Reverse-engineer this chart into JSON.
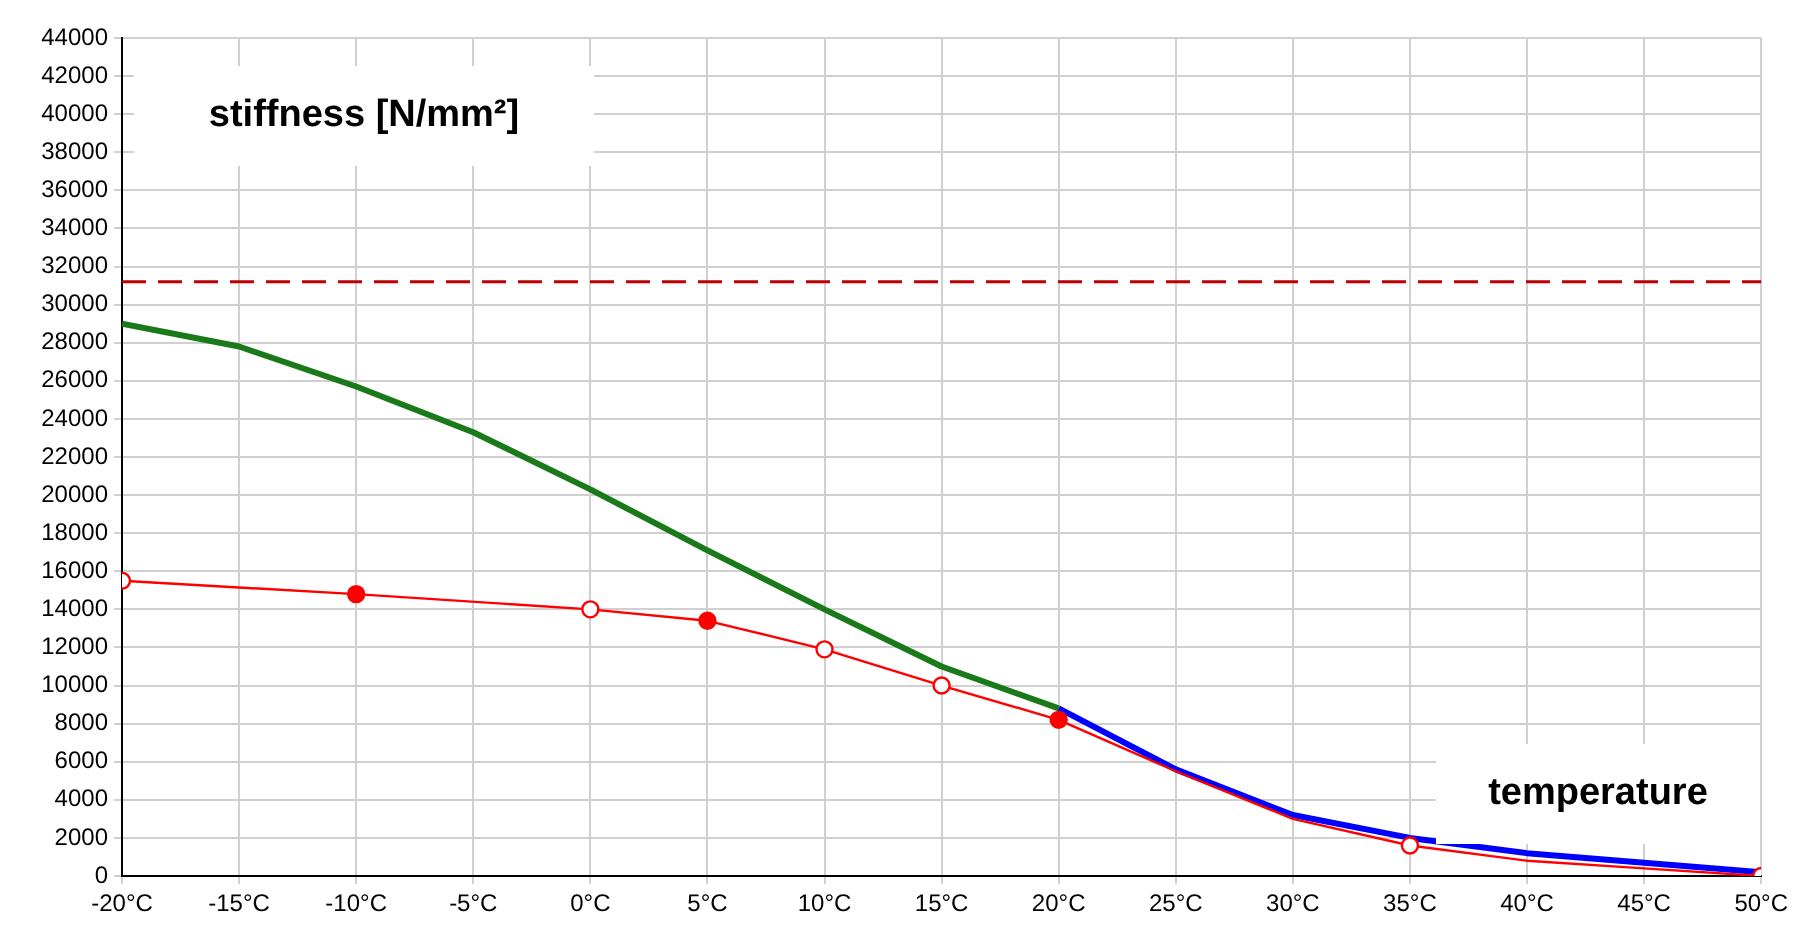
{
  "chart_data": {
    "type": "line",
    "ylabel": "stiffness [N/mm²]",
    "xlabel": "temperature",
    "xlim": [
      -20,
      50
    ],
    "xticks": [
      {
        "value": -20,
        "label": "-20°C"
      },
      {
        "value": -15,
        "label": "-15°C"
      },
      {
        "value": -10,
        "label": "-10°C"
      },
      {
        "value": -5,
        "label": "-5°C"
      },
      {
        "value": 0,
        "label": "0°C"
      },
      {
        "value": 5,
        "label": "5°C"
      },
      {
        "value": 10,
        "label": "10°C"
      },
      {
        "value": 15,
        "label": "15°C"
      },
      {
        "value": 20,
        "label": "20°C"
      },
      {
        "value": 25,
        "label": "25°C"
      },
      {
        "value": 30,
        "label": "30°C"
      },
      {
        "value": 35,
        "label": "35°C"
      },
      {
        "value": 40,
        "label": "40°C"
      },
      {
        "value": 45,
        "label": "45°C"
      },
      {
        "value": 50,
        "label": "50°C"
      }
    ],
    "ylim": [
      0,
      44000
    ],
    "yticks": [
      0,
      2000,
      4000,
      6000,
      8000,
      10000,
      12000,
      14000,
      16000,
      18000,
      20000,
      22000,
      24000,
      26000,
      28000,
      30000,
      32000,
      34000,
      36000,
      38000,
      40000,
      42000,
      44000
    ],
    "grid": true,
    "legend": false,
    "ref_lines": [
      {
        "axis": "y",
        "value": 31200,
        "color": "#c00000",
        "line_style": "dashed"
      }
    ],
    "series": [
      {
        "type": "line",
        "color": "#1a7a1a",
        "marker": "none",
        "x": [
          -20,
          -15,
          -10,
          -5,
          0,
          5,
          10,
          15,
          20
        ],
        "values": [
          29000,
          27800,
          25700,
          23300,
          20300,
          17100,
          14000,
          11000,
          8800
        ]
      },
      {
        "type": "line",
        "color": "#ff0000",
        "marker": "none",
        "x": [
          -20,
          -10,
          0,
          5,
          10,
          15,
          20,
          25,
          30,
          35,
          40,
          45,
          50
        ],
        "values": [
          15500,
          14800,
          14000,
          13400,
          11900,
          10000,
          8200,
          5500,
          3000,
          1600,
          800,
          400,
          0
        ]
      },
      {
        "type": "line",
        "color": "#0000ff",
        "marker": "none",
        "x": [
          20,
          25,
          30,
          35,
          40,
          45,
          50
        ],
        "values": [
          8800,
          5600,
          3200,
          2000,
          1200,
          700,
          200
        ]
      },
      {
        "type": "scatter",
        "color": "#ff0000",
        "marker": "circle",
        "colors": [
          "#ffffff",
          "#ff0000",
          "#ffffff",
          "#ff0000",
          "#ffffff",
          "#ffffff",
          "#ff0000",
          "#ffffff",
          "#ffffff"
        ],
        "x": [
          -20,
          -10,
          0,
          5,
          10,
          15,
          20,
          35,
          50
        ],
        "values": [
          15500,
          14800,
          14000,
          13400,
          11900,
          10000,
          8200,
          1600,
          0
        ]
      }
    ]
  }
}
